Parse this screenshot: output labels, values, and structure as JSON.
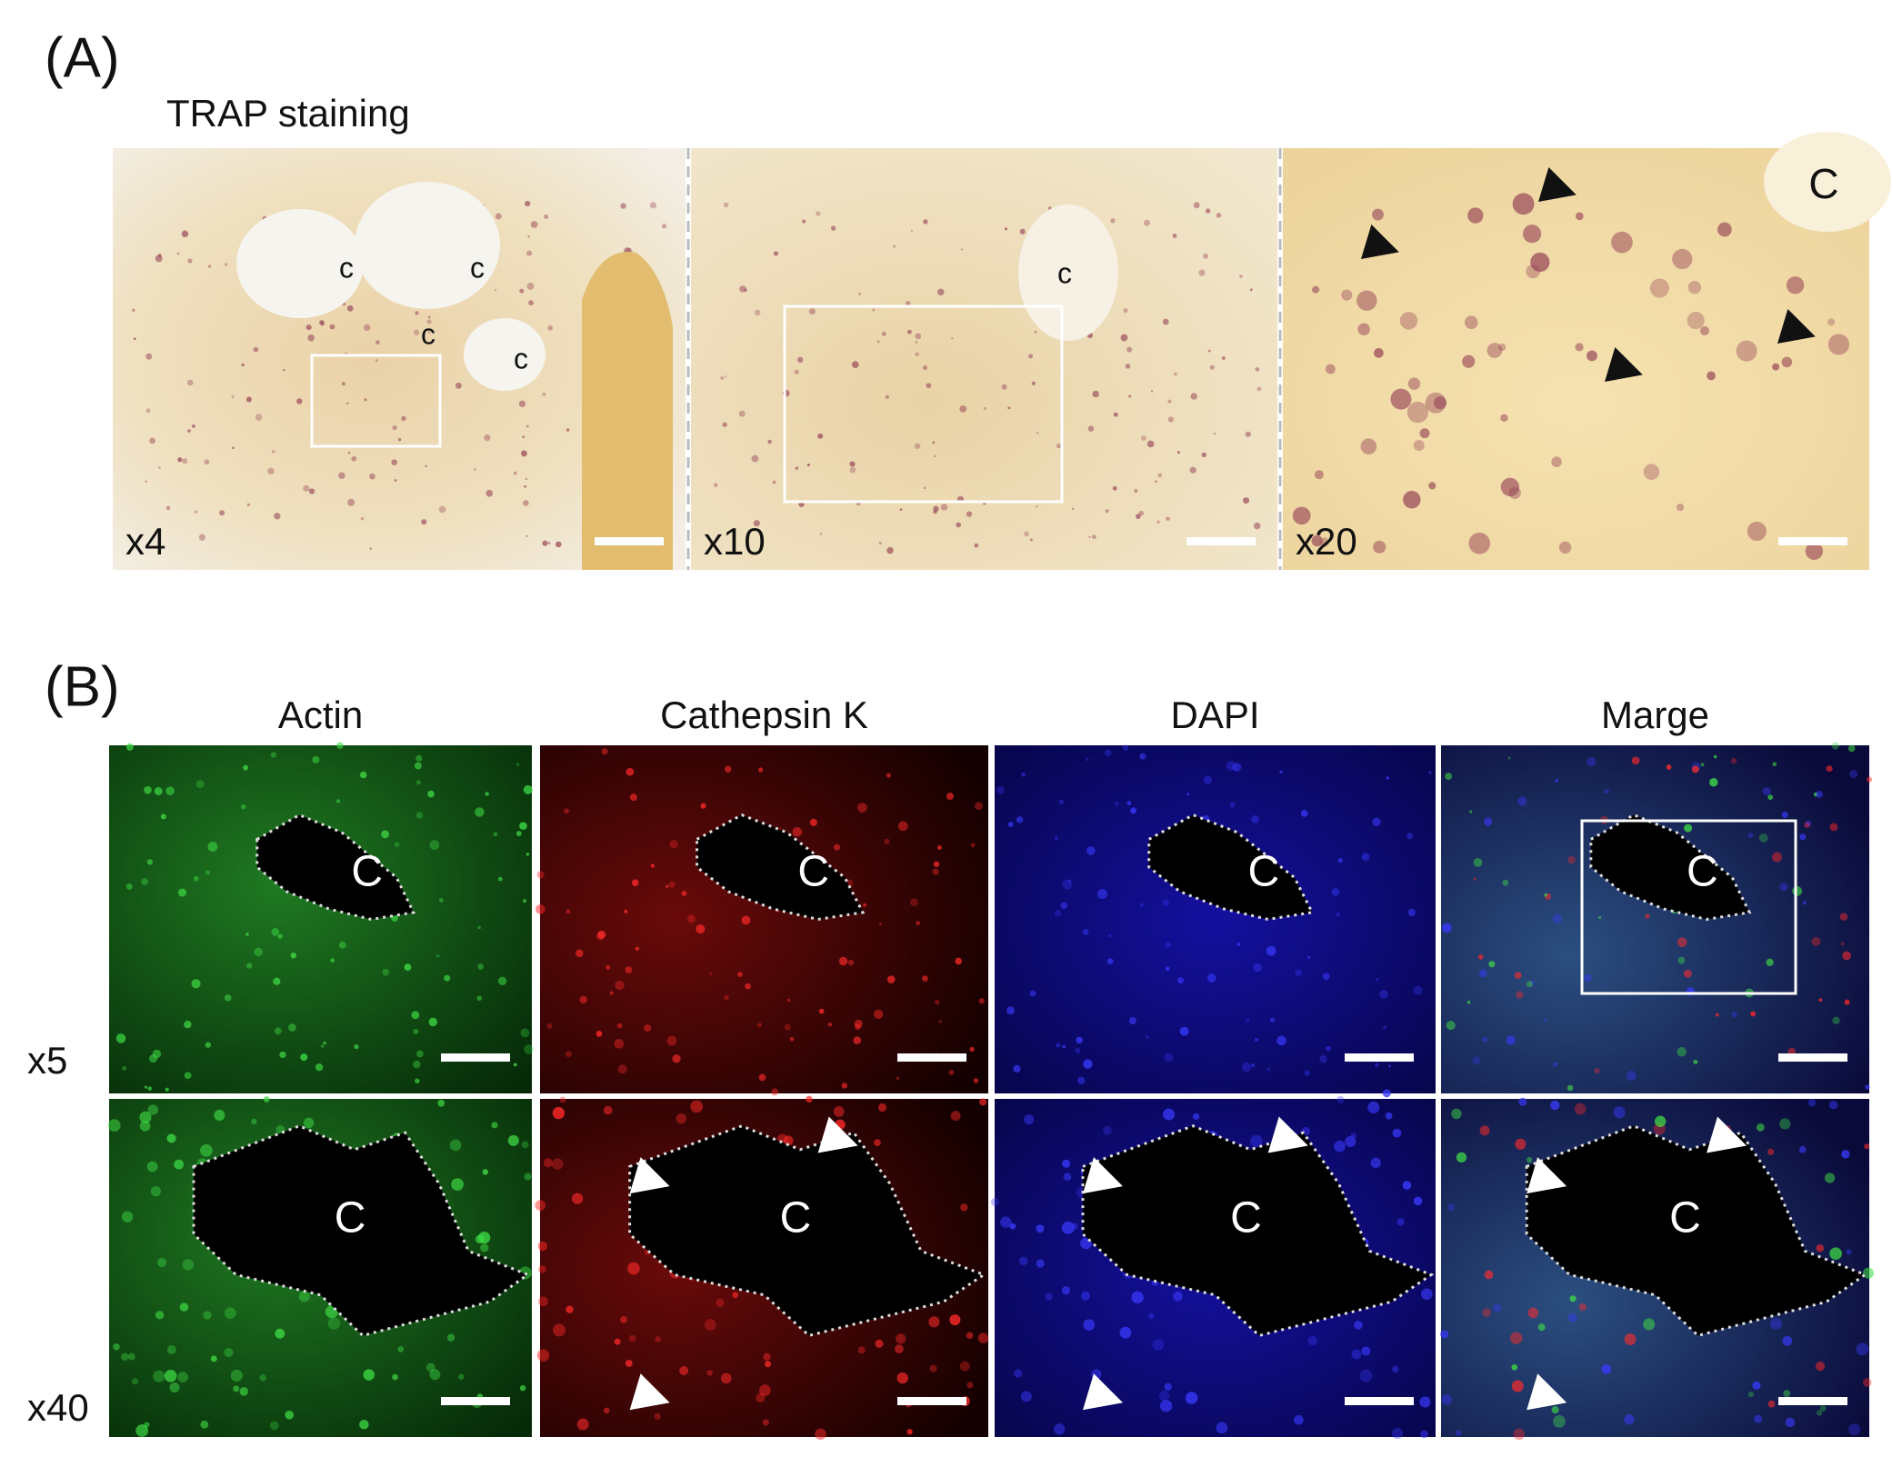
{
  "panel_a": {
    "label": "(A)",
    "title": "TRAP staining",
    "images": [
      {
        "magnification": "x4",
        "cavity_labels": [
          "c",
          "c",
          "c",
          "c"
        ]
      },
      {
        "magnification": "x10",
        "cavity_labels": [
          "c"
        ]
      },
      {
        "magnification": "x20",
        "cavity_labels": [
          "C"
        ]
      }
    ]
  },
  "panel_b": {
    "label": "(B)",
    "channels": [
      "Actin",
      "Cathepsin K",
      "DAPI",
      "Marge"
    ],
    "rows": [
      {
        "magnification": "x5",
        "cavity_labels": [
          "C",
          "C",
          "C",
          "C"
        ]
      },
      {
        "magnification": "x40",
        "cavity_labels": [
          "C",
          "C",
          "C",
          "C"
        ]
      }
    ]
  }
}
